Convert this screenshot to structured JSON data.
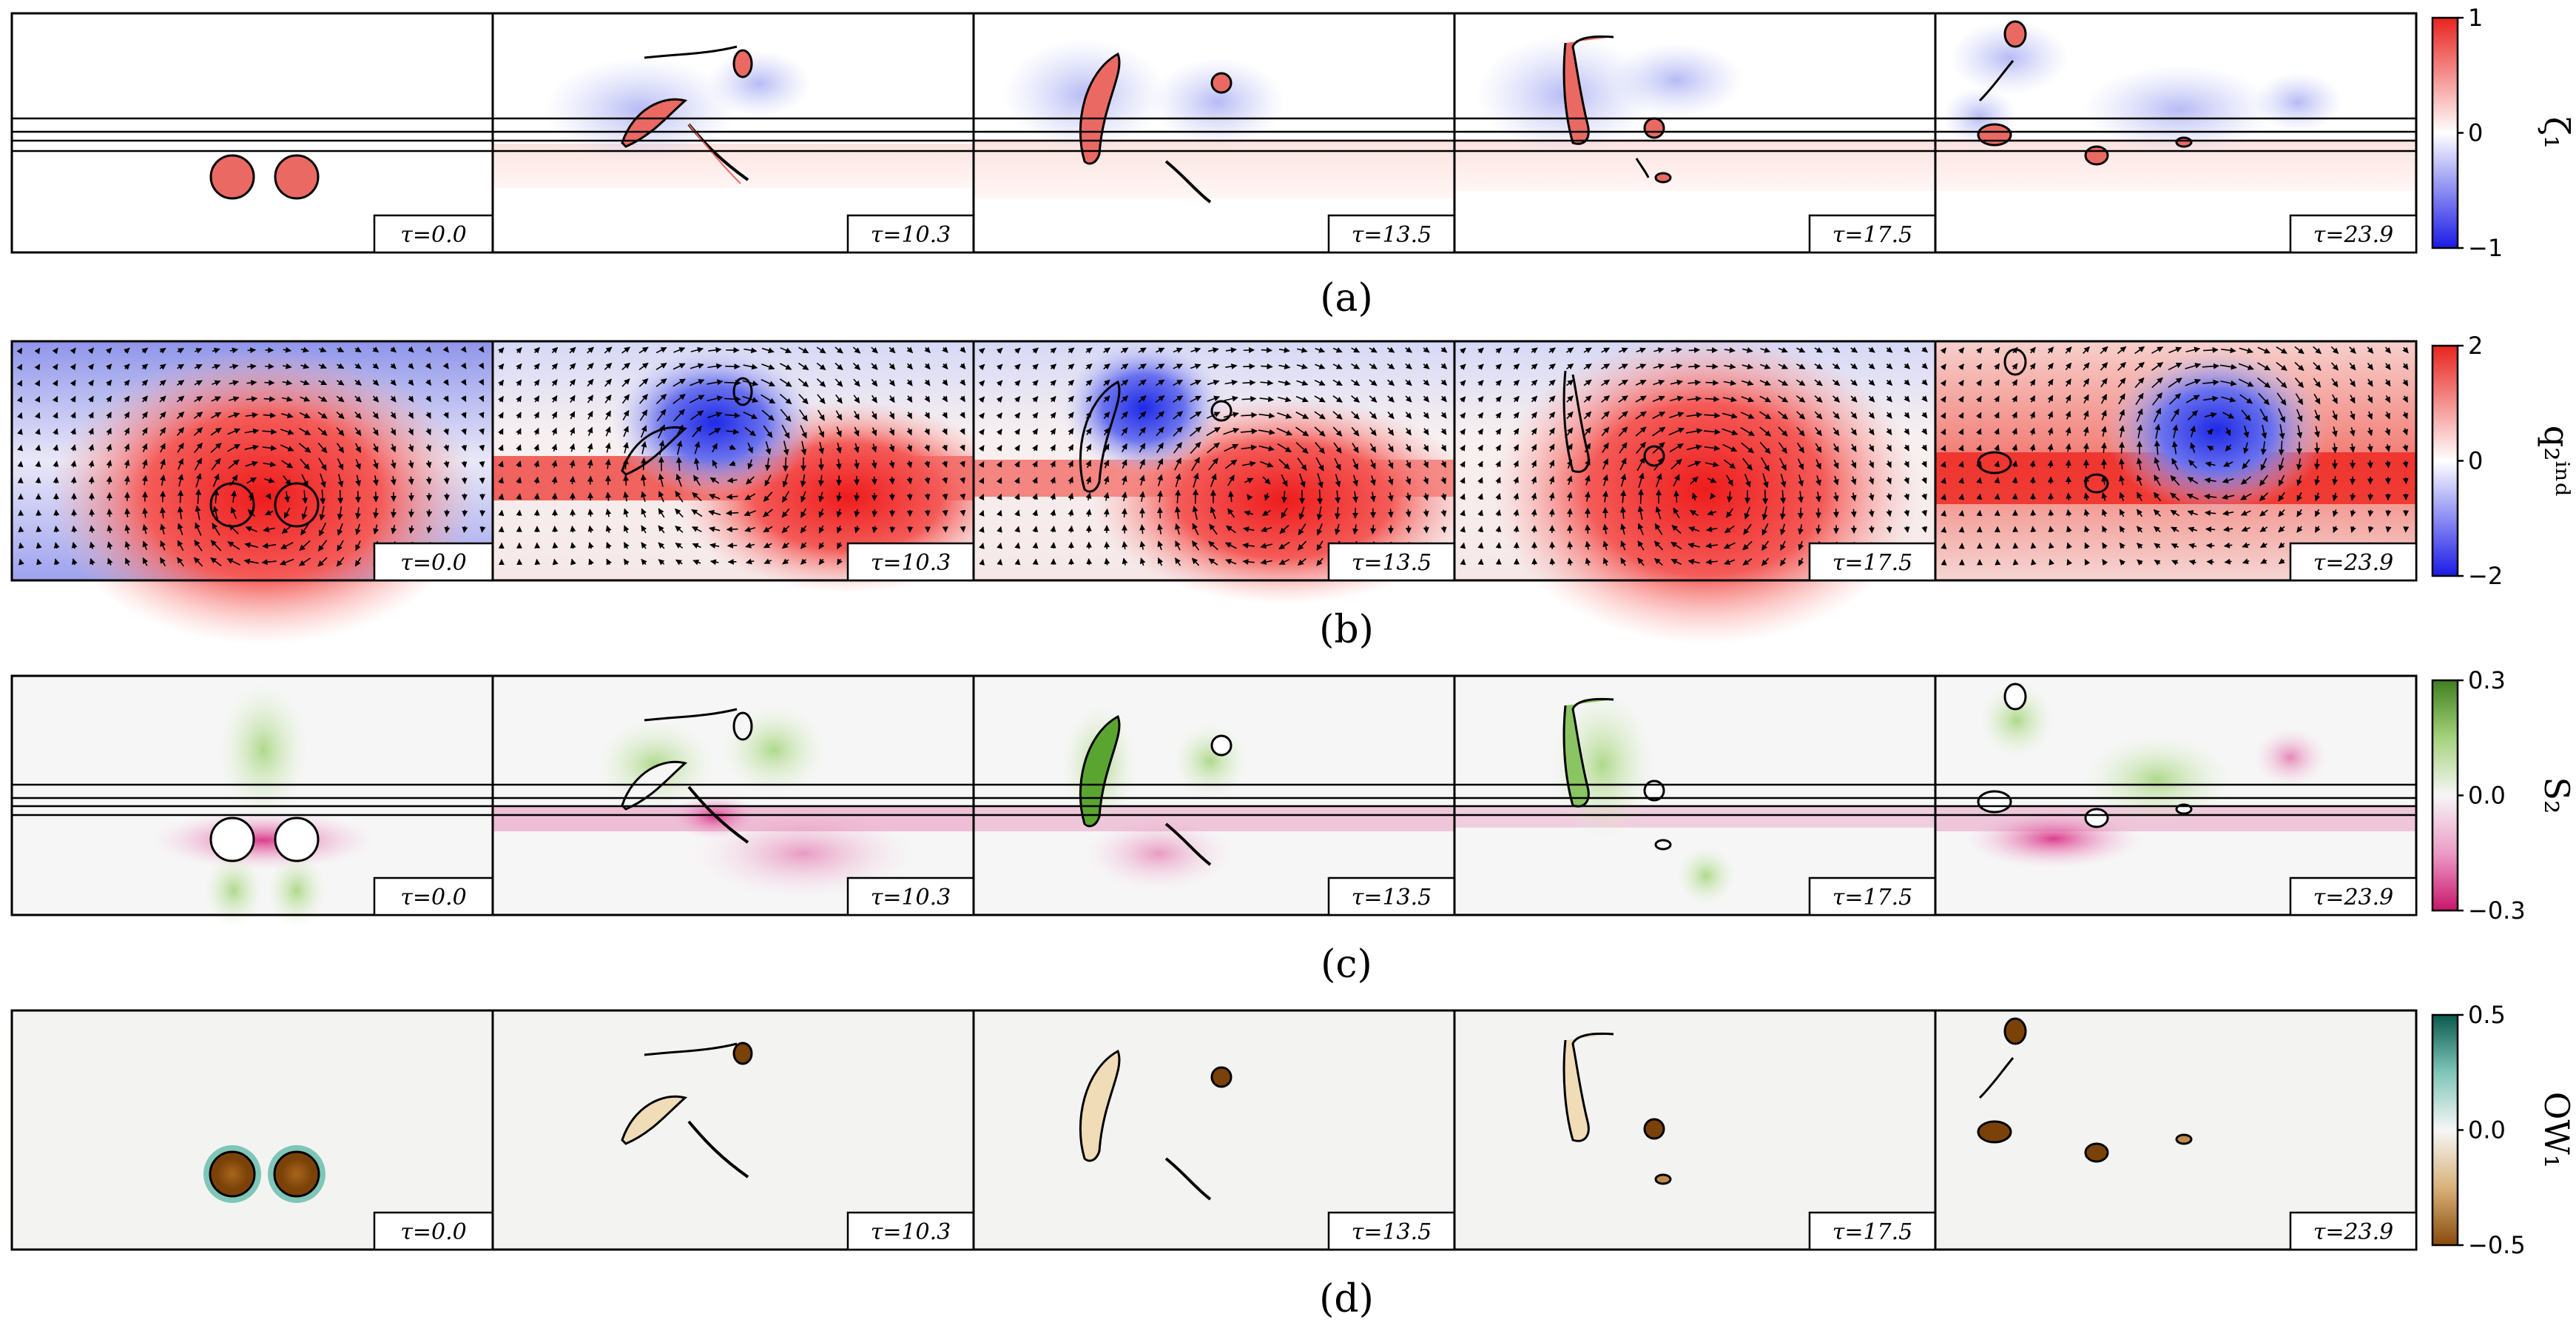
{
  "figure": {
    "time_labels": [
      "τ=0.0",
      "τ=10.3",
      "τ=13.5",
      "τ=17.5",
      "τ=23.9"
    ],
    "rows": [
      {
        "caption": "(a)",
        "variable": "ζ₁",
        "colormap": "bwr",
        "colorbar": {
          "max": 1,
          "min": -1,
          "ticks": [
            "1",
            "0",
            "−1"
          ],
          "top_color": "#e8241e",
          "mid_color": "#ffffff",
          "bottom_color": "#1a1ae6"
        },
        "overlay": "layer-lines"
      },
      {
        "caption": "(b)",
        "variable": "q₂ⁱⁿᵈ",
        "colormap": "bwr",
        "colorbar": {
          "max": 2,
          "min": -2,
          "ticks": [
            "2",
            "0",
            "−2"
          ],
          "top_color": "#e8241e",
          "mid_color": "#ffffff",
          "bottom_color": "#1a1ae6"
        },
        "overlay": "velocity-arrows"
      },
      {
        "caption": "(c)",
        "variable": "S₂",
        "colormap": "PiYG",
        "colorbar": {
          "max": 0.3,
          "min": -0.3,
          "ticks": [
            "0.3",
            "0.0",
            "−0.3"
          ],
          "top_color": "#3f7f1f",
          "mid_color": "#f6f6f6",
          "bottom_color": "#c8166c"
        },
        "overlay": "layer-lines"
      },
      {
        "caption": "(d)",
        "variable": "OW₁",
        "colormap": "BrBG",
        "colorbar": {
          "max": 0.5,
          "min": -0.5,
          "ticks": [
            "0.5",
            "0.0",
            "−0.5"
          ],
          "top_color": "#0a5a4e",
          "mid_color": "#f6f6f6",
          "bottom_color": "#8a4a0a"
        },
        "overlay": "none"
      }
    ]
  }
}
